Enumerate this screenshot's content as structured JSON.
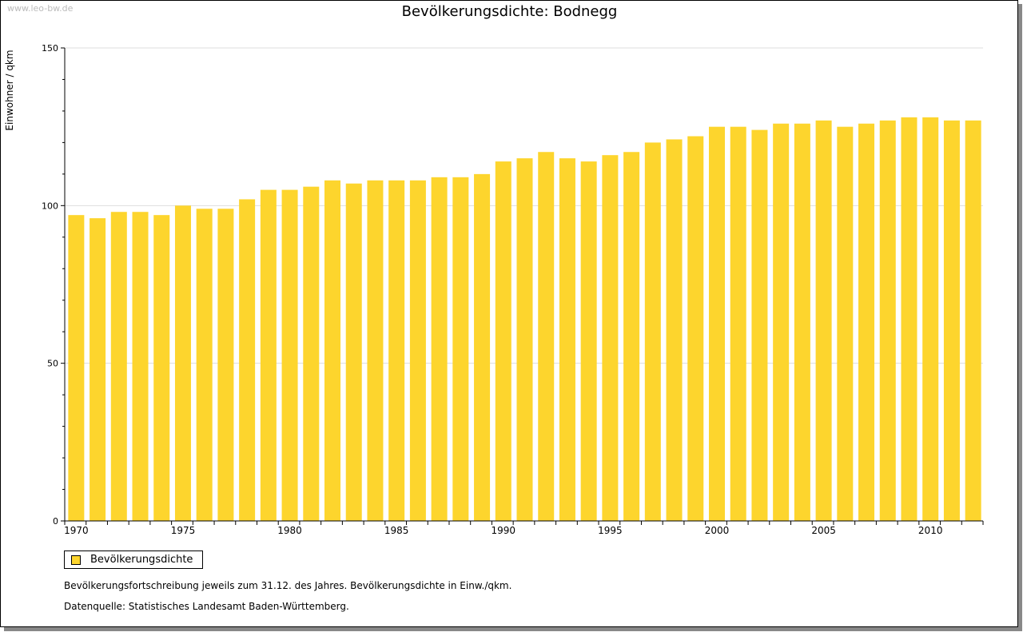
{
  "site": "www.leo-bw.de",
  "chart_data": {
    "type": "bar",
    "title": "Bevölkerungsdichte: Bodnegg",
    "xlabel": "",
    "ylabel": "Einwohner / qkm",
    "ylim": [
      0,
      150
    ],
    "yticks": [
      "0",
      "50",
      "100",
      "150"
    ],
    "xticks": [
      "1970",
      "1975",
      "1980",
      "1985",
      "1990",
      "1995",
      "2000",
      "2005",
      "2010"
    ],
    "grid": true,
    "legend_position": "bottom-left",
    "categories": [
      1970,
      1971,
      1972,
      1973,
      1974,
      1975,
      1976,
      1977,
      1978,
      1979,
      1980,
      1981,
      1982,
      1983,
      1984,
      1985,
      1986,
      1987,
      1988,
      1989,
      1990,
      1991,
      1992,
      1993,
      1994,
      1995,
      1996,
      1997,
      1998,
      1999,
      2000,
      2001,
      2002,
      2003,
      2004,
      2005,
      2006,
      2007,
      2008,
      2009,
      2010,
      2011,
      2012
    ],
    "series": [
      {
        "name": "Bevölkerungsdichte",
        "color": "#fdd52d",
        "values": [
          97,
          96,
          98,
          98,
          97,
          100,
          99,
          99,
          102,
          105,
          105,
          106,
          108,
          107,
          108,
          108,
          108,
          109,
          109,
          110,
          114,
          115,
          117,
          115,
          114,
          116,
          117,
          120,
          121,
          122,
          125,
          125,
          124,
          126,
          126,
          127,
          125,
          126,
          127,
          128,
          128,
          127,
          127
        ]
      }
    ]
  },
  "notes": [
    "Bevölkerungsfortschreibung jeweils zum 31.12. des Jahres. Bevölkerungsdichte in Einw./qkm.",
    "Datenquelle: Statistisches Landesamt Baden-Württemberg."
  ]
}
